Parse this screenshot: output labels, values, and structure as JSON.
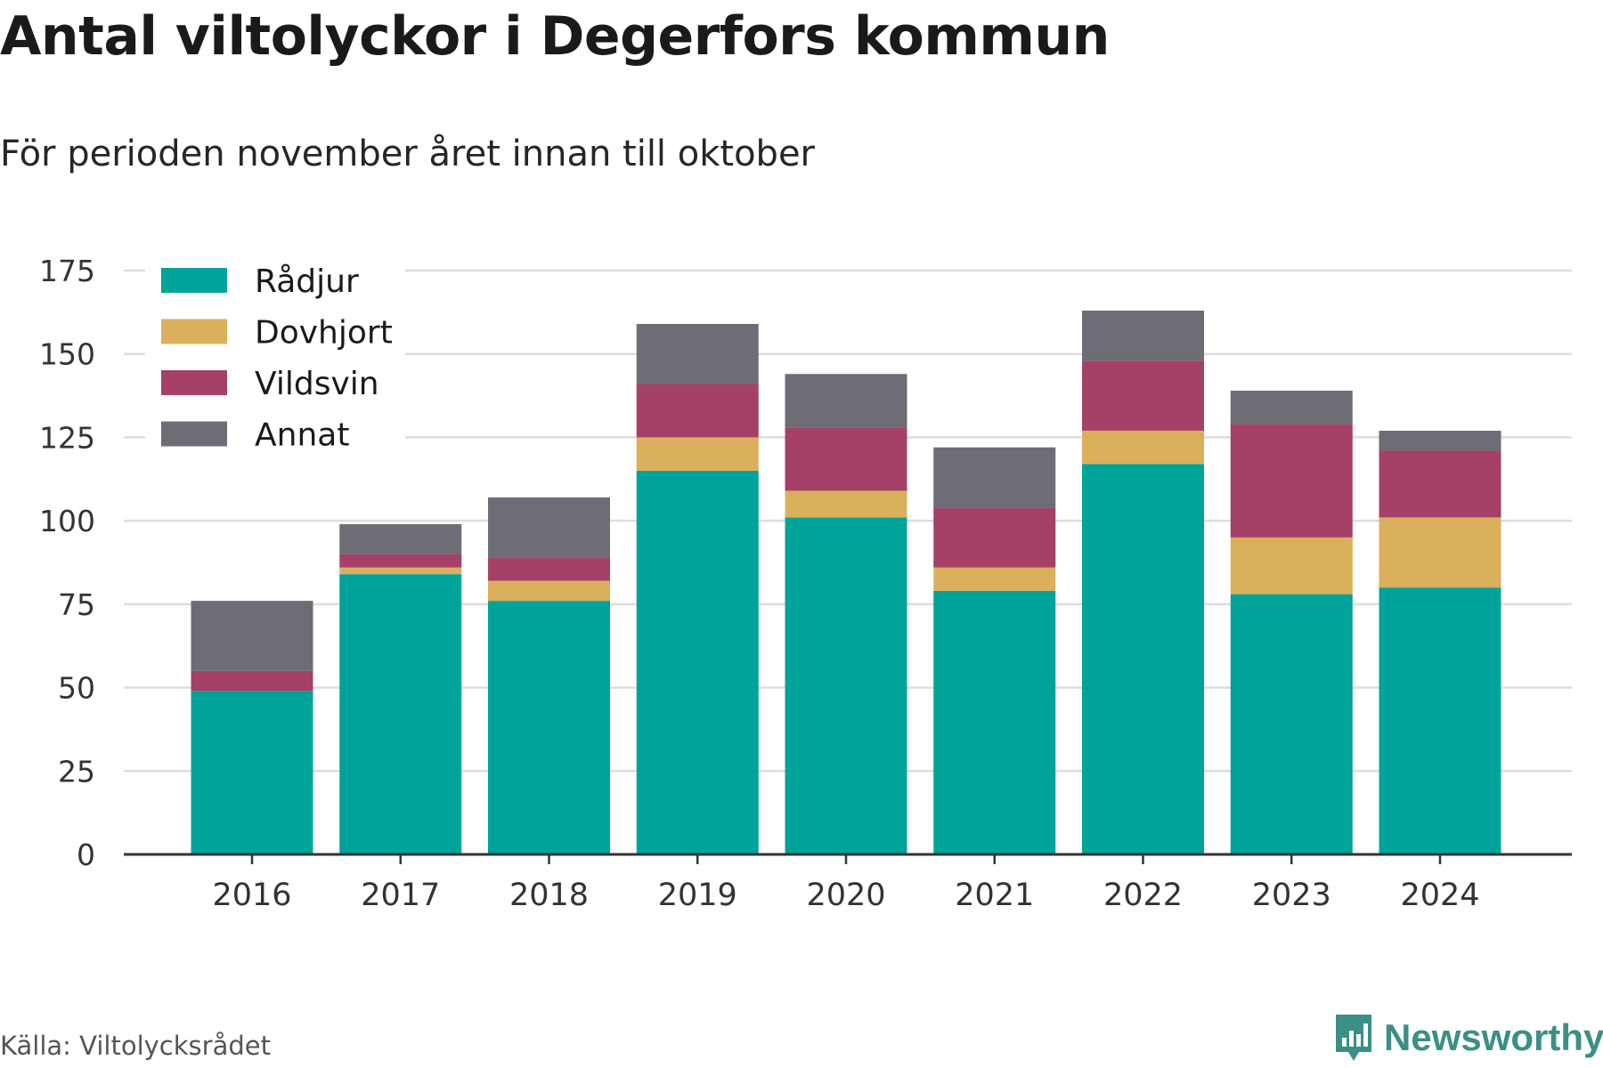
{
  "header": {
    "title": "Antal viltolyckor i Degerfors kommun",
    "subtitle": "För perioden november året innan till oktober"
  },
  "footer": {
    "source": "Källa: Viltolycksrådet",
    "brand": "Newsworthy",
    "brand_icon": "bar-chart-logo-icon",
    "brand_color": "#3b8f86"
  },
  "chart_data": {
    "type": "bar",
    "stacked": true,
    "categories": [
      "2016",
      "2017",
      "2018",
      "2019",
      "2020",
      "2021",
      "2022",
      "2023",
      "2024"
    ],
    "series": [
      {
        "name": "Rådjur",
        "color": "#00a39a",
        "values": [
          49,
          84,
          76,
          115,
          101,
          79,
          117,
          78,
          80
        ]
      },
      {
        "name": "Dovhjort",
        "color": "#dbb05c",
        "values": [
          0,
          2,
          6,
          10,
          8,
          7,
          10,
          17,
          21
        ]
      },
      {
        "name": "Vildsvin",
        "color": "#a54067",
        "values": [
          6,
          4,
          7,
          16,
          19,
          18,
          21,
          34,
          20
        ]
      },
      {
        "name": "Annat",
        "color": "#6e6c75",
        "values": [
          21,
          9,
          18,
          18,
          16,
          18,
          15,
          10,
          6
        ]
      }
    ],
    "ylim": [
      0,
      175
    ],
    "yticks": [
      0,
      25,
      50,
      75,
      100,
      125,
      150,
      175
    ],
    "xlabel": "",
    "ylabel": "",
    "grid": true,
    "legend_position": "top-left"
  }
}
